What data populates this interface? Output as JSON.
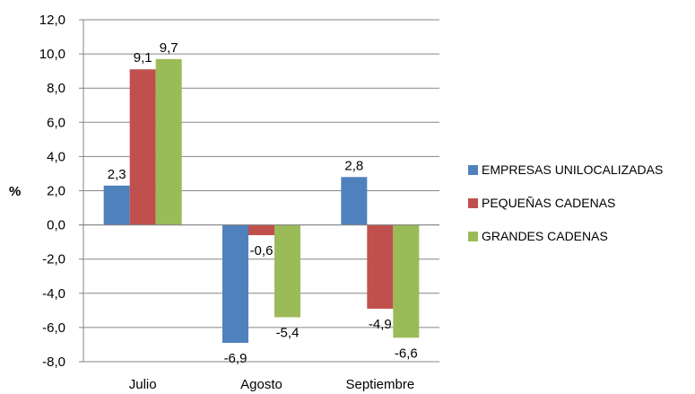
{
  "chart_data": {
    "type": "bar",
    "ylabel": "%",
    "ylim": [
      -8,
      12
    ],
    "yticks": [
      "12,0",
      "10,0",
      "8,0",
      "6,0",
      "4,0",
      "2,0",
      "0,0",
      "-2,0",
      "-4,0",
      "-6,0",
      "-8,0"
    ],
    "grid": true,
    "legend_position": "right",
    "categories": [
      "Julio",
      "Agosto",
      "Septiembre"
    ],
    "series": [
      {
        "name": "EMPRESAS UNILOCALIZADAS",
        "color": "#4F81BD",
        "values": [
          2.3,
          -6.9,
          2.8
        ],
        "labels": [
          "2,3",
          "-6,9",
          "2,8"
        ]
      },
      {
        "name": "PEQUEÑAS CADENAS",
        "color": "#C0504D",
        "values": [
          9.1,
          -0.6,
          -4.9
        ],
        "labels": [
          "9,1",
          "-0,6",
          "-4,9"
        ]
      },
      {
        "name": "GRANDES CADENAS",
        "color": "#9BBB59",
        "values": [
          9.7,
          -5.4,
          -6.6
        ],
        "labels": [
          "9,7",
          "-5,4",
          "-6,6"
        ]
      }
    ]
  }
}
